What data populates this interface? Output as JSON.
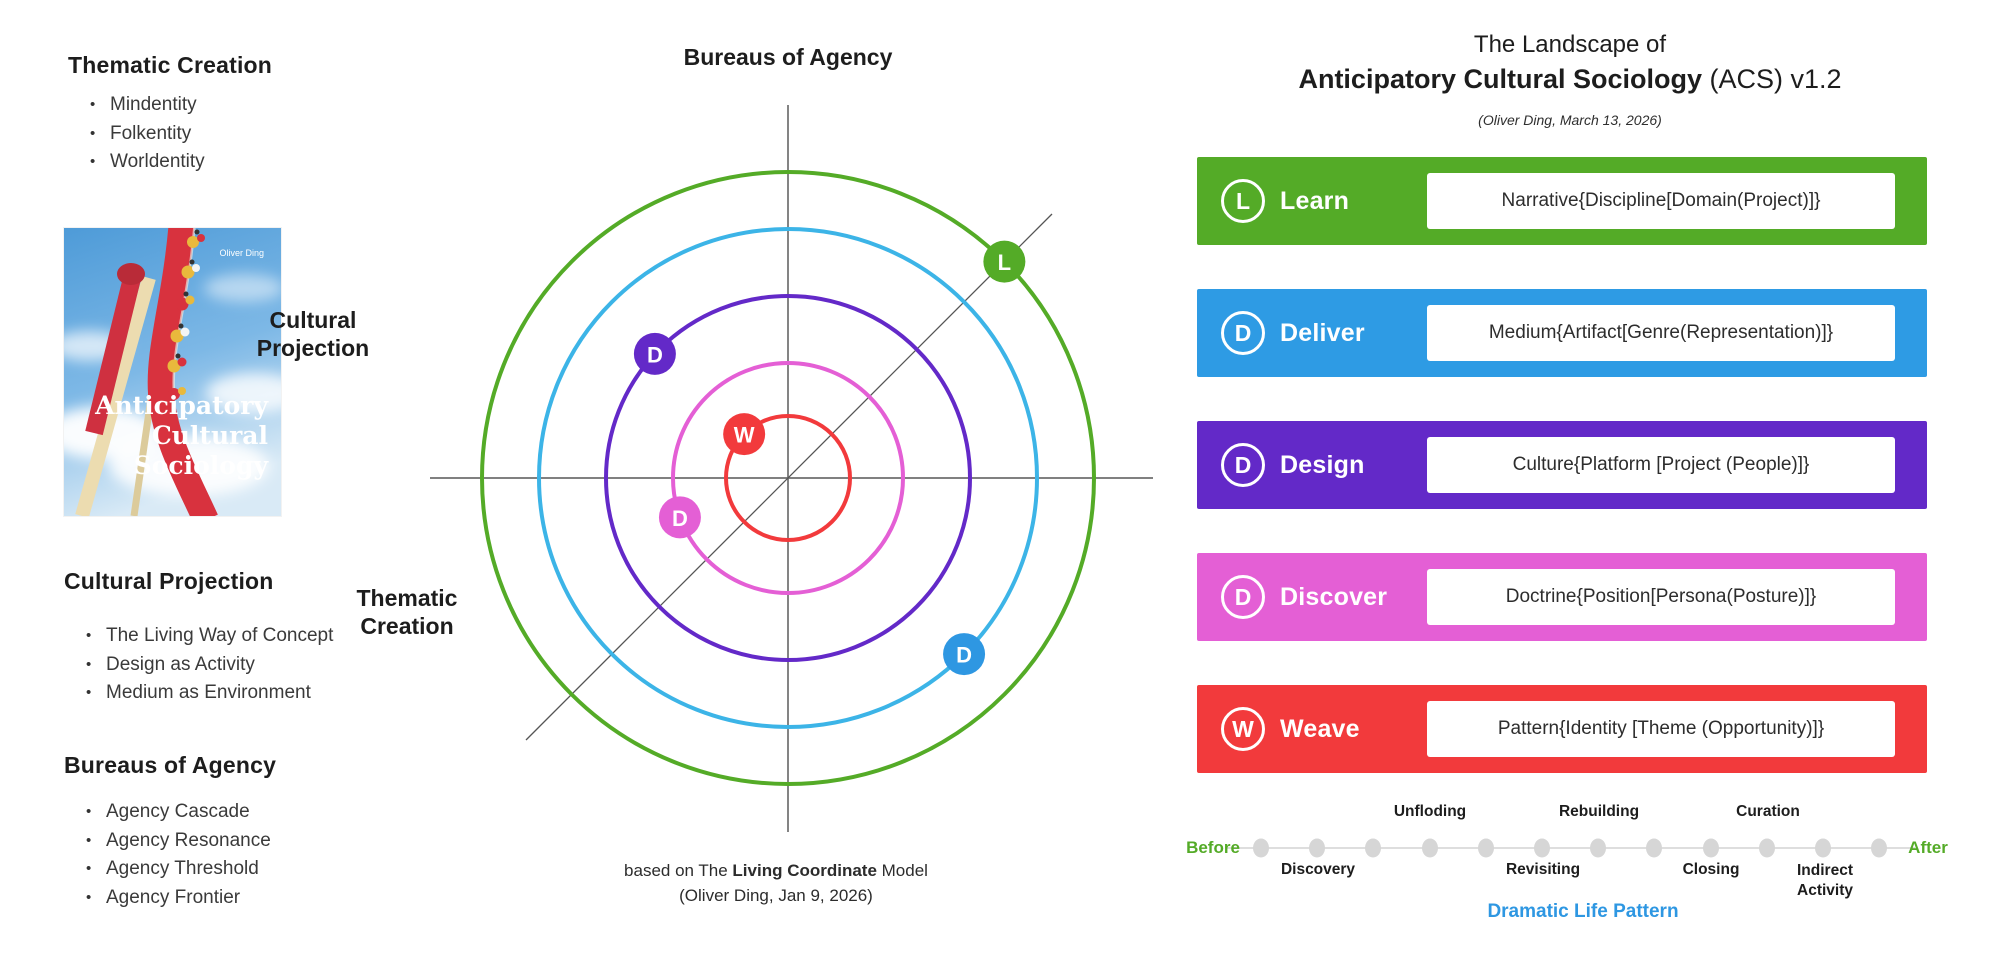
{
  "left": {
    "sections": [
      {
        "title": "Thematic Creation",
        "items": [
          "Mindentity",
          "Folkentity",
          "Worldentity"
        ]
      },
      {
        "title": "Cultural Projection",
        "items": [
          "The Living Way of Concept",
          "Design as Activity",
          "Medium as Environment"
        ]
      },
      {
        "title": "Bureaus of Agency",
        "items": [
          "Agency Cascade",
          "Agency Resonance",
          "Agency Threshold",
          "Agency Frontier"
        ]
      }
    ],
    "book": {
      "author": "Oliver Ding",
      "title_lines": [
        "Anticipatory",
        "Cultural",
        "Sociology"
      ],
      "track_red": "#d8323e",
      "sky_blue": "#4e9bd8"
    }
  },
  "diagram": {
    "axis_top": "Bureaus of Agency",
    "axis_left_line1": "Cultural",
    "axis_left_line2": "Projection",
    "axis_bottom_line1": "Thematic",
    "axis_bottom_line2": "Creation",
    "caption_prefix": "based on The ",
    "caption_bold": "Living Coordinate",
    "caption_suffix": " Model",
    "caption_line2": "(Oliver Ding, Jan 9, 2026)",
    "axis_color": "#6e6e6e",
    "rings": [
      {
        "name": "Learn",
        "color": "#54ab27",
        "radius": 306,
        "marker": {
          "letter": "L",
          "angle_deg": 45,
          "color": "#54ab27"
        }
      },
      {
        "name": "Deliver",
        "color": "#3cb4e7",
        "radius": 249,
        "marker": {
          "letter": "D",
          "angle_deg": -45,
          "color": "#2e97e2"
        }
      },
      {
        "name": "Design",
        "color": "#6329c8",
        "radius": 182,
        "marker": {
          "letter": "D",
          "angle_deg": 137,
          "color": "#6329c8"
        }
      },
      {
        "name": "Discover",
        "color": "#e45fd5",
        "radius": 115,
        "marker": {
          "letter": "D",
          "angle_deg": 200,
          "color": "#e45fd5"
        }
      },
      {
        "name": "Weave",
        "color": "#f23a3c",
        "radius": 62,
        "marker": {
          "letter": "W",
          "angle_deg": 135,
          "color": "#f23a3c"
        }
      }
    ]
  },
  "landscape": {
    "title_line1": "The Landscape of",
    "title_bold": "Anticipatory Cultural Sociology",
    "title_suffix": " (ACS) v1.2",
    "subtitle": "(Oliver Ding, March 13, 2026)",
    "rows": [
      {
        "letter": "L",
        "label": "Learn",
        "formula": "Narrative{Discipline[Domain(Project)]}",
        "color": "#54ab27"
      },
      {
        "letter": "D",
        "label": "Deliver",
        "formula": "Medium{Artifact[Genre(Representation)]}",
        "color": "#2e9be4"
      },
      {
        "letter": "D",
        "label": "Design",
        "formula": "Culture{Platform [Project (People)]}",
        "color": "#6329c8"
      },
      {
        "letter": "D",
        "label": "Discover",
        "formula": "Doctrine{Position[Persona(Posture)]}",
        "color": "#e45fd5"
      },
      {
        "letter": "W",
        "label": "Weave",
        "formula": "Pattern{Identity [Theme (Opportunity)]}",
        "color": "#f23a3c"
      }
    ]
  },
  "timeline": {
    "before": "Before",
    "after": "After",
    "above_labels": [
      "Unfloding",
      "Rebuilding",
      "Curation"
    ],
    "below_labels": [
      "Discovery",
      "Revisiting",
      "Closing",
      "Indirect Activity"
    ],
    "footer": "Dramatic Life Pattern",
    "dot_count": 12,
    "accent_green": "#54ab27",
    "accent_blue": "#2e97e2",
    "dot_color": "#d6d6d6"
  }
}
